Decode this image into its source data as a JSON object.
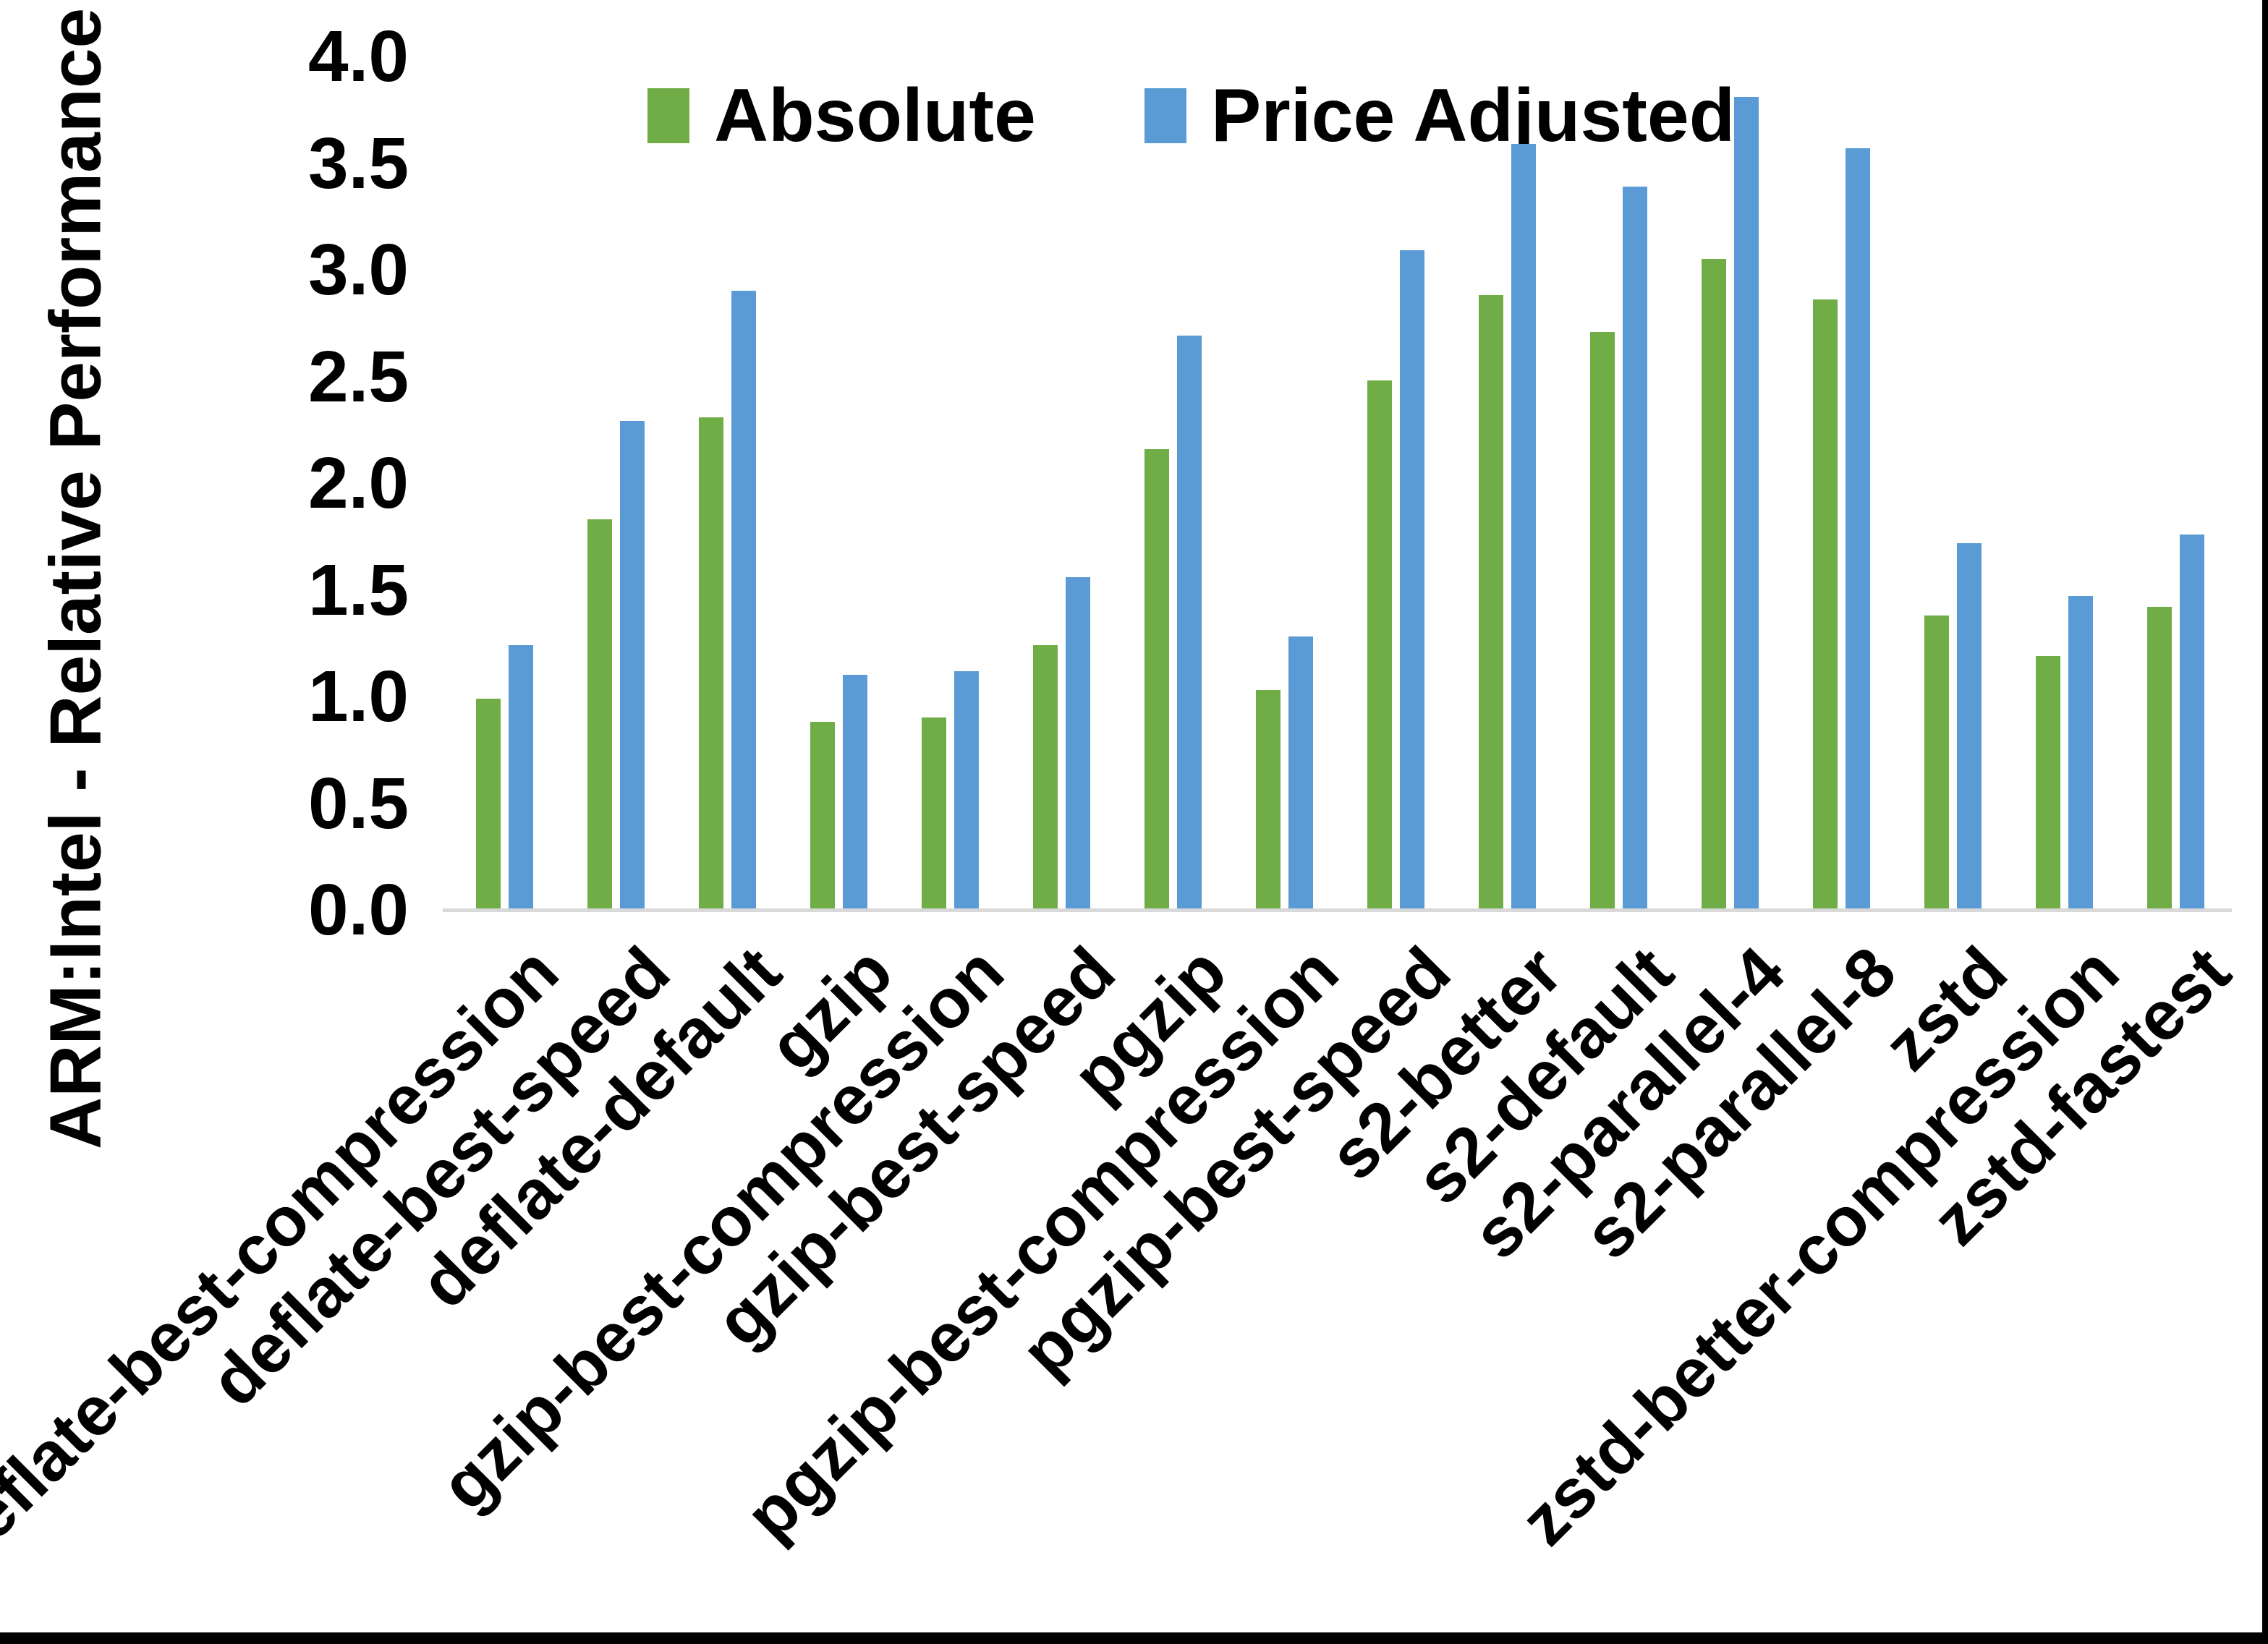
{
  "chart_data": {
    "type": "bar",
    "title": "",
    "xlabel": "",
    "ylabel": "ARM:Intel - Relative Performance",
    "ylim": [
      0.0,
      4.0
    ],
    "ytick_step": 0.5,
    "yticks": [
      "0.0",
      "0.5",
      "1.0",
      "1.5",
      "2.0",
      "2.5",
      "3.0",
      "3.5",
      "4.0"
    ],
    "grid": false,
    "legend_position": "top-center",
    "categories": [
      "deflate-best-compression",
      "deflate-best-speed",
      "deflate-default",
      "gzip",
      "gzip-best-compression",
      "gzip-best-speed",
      "pgzip",
      "pgzip-best-compression",
      "pgzip-best-speed",
      "s2-better",
      "s2-default",
      "s2-parallel-4",
      "s2-parallel-8",
      "zstd",
      "zstd-better-compression",
      "zstd-fastest"
    ],
    "series": [
      {
        "name": "Absolute",
        "color": "#70AD47",
        "values": [
          0.99,
          1.83,
          2.31,
          0.88,
          0.9,
          1.24,
          2.16,
          1.03,
          2.48,
          2.88,
          2.71,
          3.05,
          2.86,
          1.38,
          1.19,
          1.42
        ]
      },
      {
        "name": "Price Adjusted",
        "color": "#5B9BD5",
        "values": [
          1.24,
          2.29,
          2.9,
          1.1,
          1.12,
          1.56,
          2.69,
          1.28,
          3.09,
          3.59,
          3.39,
          3.81,
          3.57,
          1.72,
          1.47,
          1.76
        ]
      }
    ],
    "colors": {
      "axis_line": "#D9D9D9",
      "text": "#000000",
      "background": "#FFFFFF",
      "frame_border": "#000000"
    }
  }
}
